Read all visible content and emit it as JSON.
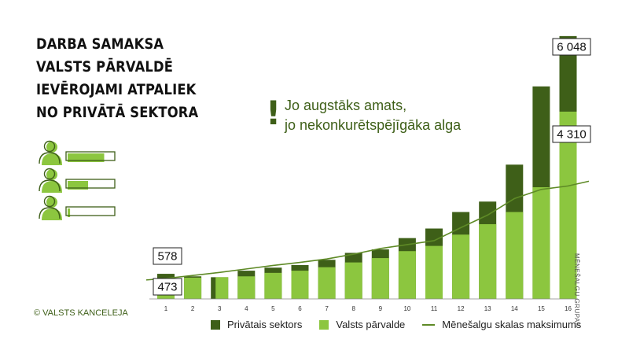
{
  "headline": {
    "lines": [
      "DARBA SAMAKSA",
      "VALSTS PĀRVALDĒ",
      "IEVĒROJAMI ATPALIEK",
      "NO PRIVĀTĀ SEKTORA"
    ]
  },
  "note": {
    "mark": "!",
    "lines": [
      "Jo augstāks amats,",
      "jo nekonkurētspējīgāka alga"
    ]
  },
  "copyright": "© VALSTS KANCELEJA",
  "side_label": "MĒNEŠALGU GRUPAS",
  "people_icons": {
    "icon": "person-with-bar-icon",
    "count": 3,
    "fill_levels": [
      0.75,
      0.42,
      0.05
    ]
  },
  "colors": {
    "private": "#3e5f18",
    "public": "#8cc63f",
    "line": "#5e8a26",
    "accent_text": "#3e5f18"
  },
  "chart_data": {
    "type": "bar",
    "categories": [
      "1",
      "2",
      "3",
      "4",
      "5",
      "6",
      "7",
      "8",
      "9",
      "10",
      "11",
      "12",
      "13",
      "14",
      "15",
      "16"
    ],
    "series": [
      {
        "name": "Privātais sektors",
        "type": "bar",
        "values": [
          578,
          520,
          500,
          650,
          720,
          780,
          900,
          1060,
          1140,
          1400,
          1620,
          2000,
          2240,
          3090,
          4890,
          6048
        ]
      },
      {
        "name": "Valsts pārvalde",
        "type": "bar",
        "values": [
          473,
          490,
          500,
          520,
          600,
          650,
          730,
          840,
          940,
          1100,
          1220,
          1480,
          1720,
          2000,
          2570,
          4310
        ]
      },
      {
        "name": "Mēnešalgu skalas maksimums",
        "type": "line",
        "values": [
          473,
          540,
          610,
          690,
          770,
          840,
          920,
          1030,
          1160,
          1250,
          1340,
          1640,
          1930,
          2310,
          2520,
          2600
        ]
      }
    ],
    "ylim": [
      0,
      6100
    ],
    "data_labels": [
      {
        "category": "1",
        "series": "Privātais sektors",
        "text": "578"
      },
      {
        "category": "1",
        "series": "Valsts pārvalde",
        "text": "473"
      },
      {
        "category": "16",
        "series": "Privātais sektors",
        "text": "6 048"
      },
      {
        "category": "16",
        "series": "Valsts pārvalde",
        "text": "4 310"
      }
    ],
    "grid": false,
    "legend_position": "bottom"
  }
}
